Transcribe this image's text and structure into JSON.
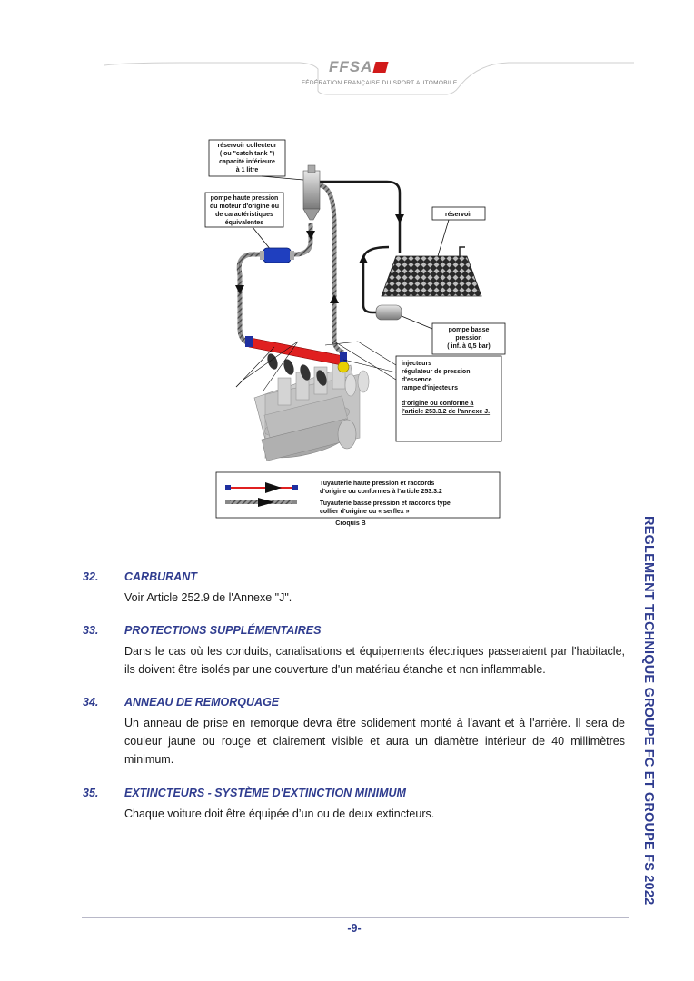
{
  "header": {
    "logo_text": "FFSA",
    "tagline": "FÉDÉRATION FRANÇAISE DU SPORT AUTOMOBILE"
  },
  "diagram": {
    "catch_tank_label": [
      "réservoir collecteur",
      "( ou \"catch tank \")",
      "capacité inférieure",
      "à 1 litre"
    ],
    "hp_pump_label": [
      "pompe haute pression",
      "du moteur d'origine ou",
      "de caractéristiques",
      "équivalentes"
    ],
    "tank_label": "réservoir",
    "lp_pump_label": [
      "pompe basse",
      "pression",
      "( inf. à 0,5 bar)"
    ],
    "components_label": [
      "injecteurs",
      "régulateur de pression",
      "d'essence",
      "rampe d'injecteurs"
    ],
    "compliance_label": [
      "d'origine ou  conforme à",
      "l'article 253.3.2 de l'annexe J."
    ],
    "legend": {
      "hp_line": [
        "Tuyauterie haute pression et raccords",
        "d'origine ou conformes à l'article 253.3.2"
      ],
      "lp_line": [
        "Tuyauterie basse pression et raccords type",
        "collier d'origine ou « serflex »"
      ]
    },
    "caption": "Croquis B",
    "colors": {
      "hp_pump": "#1f3fbf",
      "rail": "#e02020",
      "fitting": "#1f2f9f",
      "lp_hose": "#666666"
    }
  },
  "sections": [
    {
      "number": "32.",
      "title": "CARBURANT",
      "body": "Voir Article 252.9 de l'Annexe \"J\"."
    },
    {
      "number": "33.",
      "title": "PROTECTIONS SUPPLÉMENTAIRES",
      "body": "Dans le cas où les conduits, canalisations et équipements électriques passeraient par l'habitacle, ils doivent être isolés par une couverture d'un matériau étanche et non inflammable."
    },
    {
      "number": "34.",
      "title": "ANNEAU DE REMORQUAGE",
      "body": "Un anneau de prise en remorque devra être solidement monté à l'avant et à l'arrière. Il sera de couleur jaune ou rouge et clairement visible et aura un diamètre intérieur de 40 millimètres minimum."
    },
    {
      "number": "35.",
      "title": "EXTINCTEURS - SYSTÈME D'EXTINCTION MINIMUM",
      "body": "Chaque voiture doit être équipée d’un ou de deux extincteurs."
    }
  ],
  "side_title": "REGLEMENT TECHNIQUE GROUPE FC ET GROUPE FS 2022",
  "footer": {
    "page_number": "-9-"
  }
}
